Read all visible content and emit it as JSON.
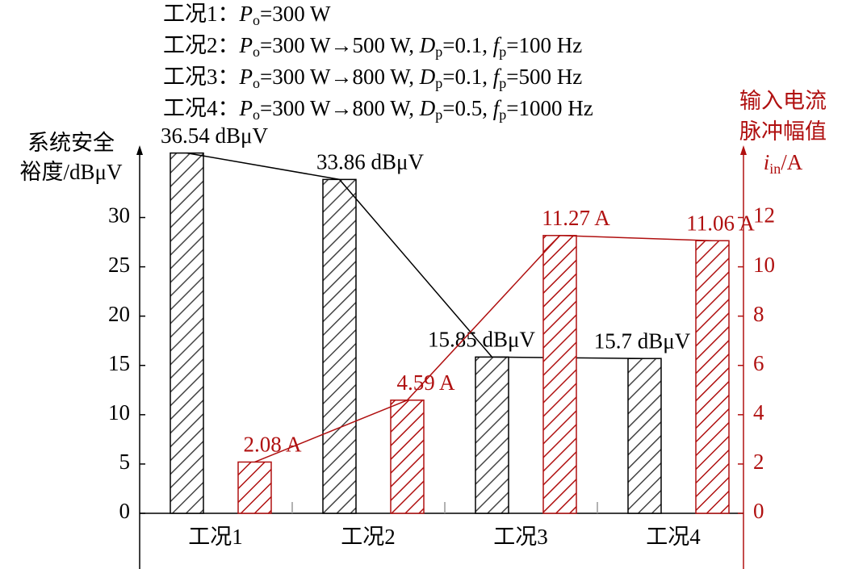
{
  "chart_data": {
    "type": "bar",
    "annotations": [
      "工况1：Po=300 W",
      "工况2：Po=300 W→500 W, Dp=0.1, fp=100 Hz",
      "工况3：Po=300 W→800 W, Dp=0.1, fp=500 Hz",
      "工况4：Po=300 W→800 W, Dp=0.5, fp=1000 Hz"
    ],
    "y_label": [
      "系统安全",
      "裕度/dBμV"
    ],
    "y2_label": [
      "输入电流",
      "脉冲幅值",
      "iin/A"
    ],
    "categories": [
      "工况1",
      "工况2",
      "工况3",
      "工况4"
    ],
    "series": [
      {
        "color": "#000000",
        "values": [
          36.54,
          33.86,
          15.85,
          15.7
        ],
        "value_labels": [
          "36.54 dBμV",
          "33.86 dBμV",
          "15.85 dBμV",
          "15.7 dBμV"
        ]
      },
      {
        "color": "#b01010",
        "axis": "y2",
        "values": [
          2.08,
          4.59,
          11.27,
          11.06
        ],
        "value_labels": [
          "2.08 A",
          "4.59 A",
          "11.27 A",
          "11.06 A"
        ]
      }
    ],
    "ylim": [
      0,
      37
    ],
    "yticks": [
      0,
      5,
      10,
      15,
      20,
      25,
      30
    ],
    "y2lim": [
      0,
      14.8
    ],
    "y2ticks": [
      0,
      2,
      4,
      6,
      8,
      10,
      12
    ]
  }
}
